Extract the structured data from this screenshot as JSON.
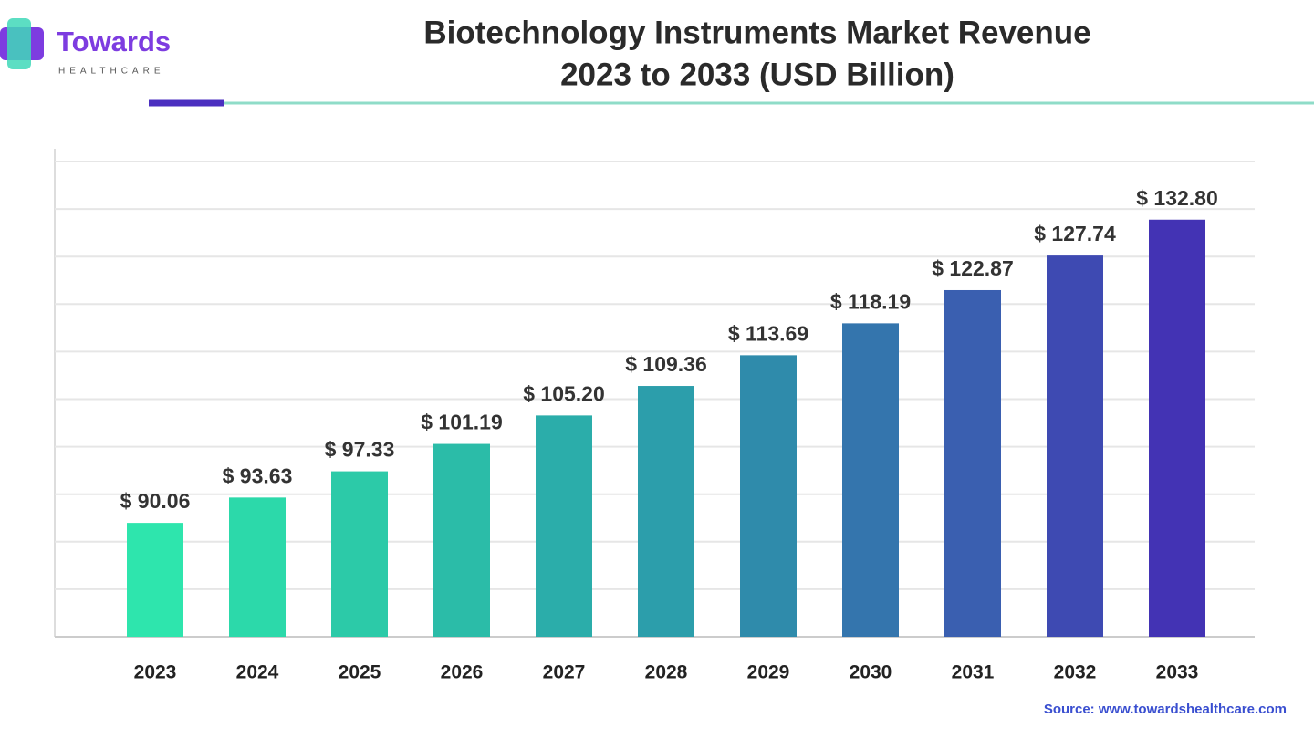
{
  "brand": {
    "name": "Towards",
    "tagline": "HEALTHCARE"
  },
  "chart_data": {
    "type": "bar",
    "title": [
      "Biotechnology Instruments Market Revenue",
      "2023 to 2033 (USD Billion)"
    ],
    "categories": [
      "2023",
      "2024",
      "2025",
      "2026",
      "2027",
      "2028",
      "2029",
      "2030",
      "2031",
      "2032",
      "2033"
    ],
    "values": [
      90.06,
      93.63,
      97.33,
      101.19,
      105.2,
      109.36,
      113.69,
      118.19,
      122.87,
      127.74,
      132.8
    ],
    "value_labels": [
      "$ 90.06",
      "$ 93.63",
      "$ 97.33",
      "$ 101.19",
      "$ 105.20",
      "$ 109.36",
      "$ 113.69",
      "$ 118.19",
      "$ 122.87",
      "$ 127.74",
      "$ 132.80"
    ],
    "colors": [
      "#2ee5ad",
      "#2cd9aa",
      "#2ccaa8",
      "#2bbca8",
      "#2badaa",
      "#2c9eab",
      "#2f8bab",
      "#3475ad",
      "#3a5fb0",
      "#3e4ab2",
      "#4333b4"
    ],
    "ylim": [
      74,
      141
    ],
    "grid": true,
    "source": "Source: www.towardshealthcare.com"
  }
}
